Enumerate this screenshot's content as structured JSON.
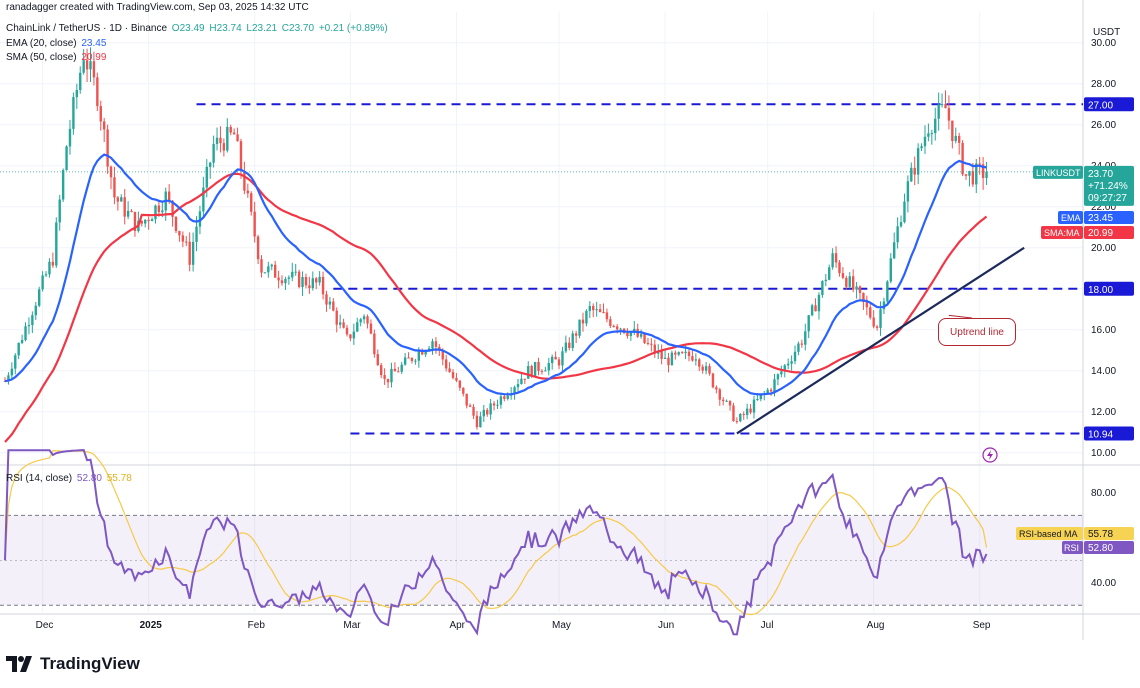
{
  "header": {
    "creator": "ranadagger created with TradingView.com, Sep 03, 2025 14:32 UTC",
    "symbol_line": "ChainLink / TetherUS · 1D · Binance",
    "ohlc": {
      "o": "O23.49",
      "h": "H23.74",
      "l": "L23.21",
      "c": "C23.70",
      "chg": "+0.21 (+0.89%)"
    },
    "ema_label": "EMA (20, close)",
    "ema_value": "23.45",
    "sma_label": "SMA (50, close)",
    "sma_value": "20.99",
    "rsi_label": "RSI (14, close)",
    "rsi_value": "52.80",
    "rsi_ma_value": "55.78"
  },
  "axis_currency": "USDT",
  "annotation": "Uptrend line",
  "badges": {
    "level_27": "27.00",
    "level_18": "18.00",
    "level_1094": "10.94",
    "symbol": "LINKUSDT",
    "price": "23.70",
    "change": "+71.24%",
    "countdown": "09:27:27",
    "ema": "EMA",
    "ema_val": "23.45",
    "sma": "SMA:MA",
    "sma_val": "20.99",
    "rsi_ma": "RSI-based MA",
    "rsi_ma_val": "55.78",
    "rsi": "RSI",
    "rsi_val": "52.80"
  },
  "brand": "TradingView",
  "colors": {
    "up": "#26a69a",
    "down": "#ef5350",
    "ema": "#2962ff",
    "sma": "#f23645",
    "level": "#1a1ad6",
    "trend": "#1b2a5a",
    "rsi": "#7e57c2",
    "rsi_ma": "#f7c948",
    "grid": "#f0f3fa"
  },
  "chart_data": [
    {
      "type": "candlestick",
      "title": "ChainLink / TetherUS · 1D · Binance",
      "ylabel": "USDT",
      "ylim": [
        9.5,
        31.5
      ],
      "y_ticks": [
        10,
        12,
        14,
        16,
        18,
        20,
        22,
        24,
        26,
        28,
        30
      ],
      "x_ticks": [
        "Dec",
        "2025",
        "Feb",
        "Mar",
        "Apr",
        "May",
        "Jun",
        "Jul",
        "Aug",
        "Sep"
      ],
      "last_close": 23.7,
      "horizontal_levels": [
        27.0,
        18.0,
        10.94
      ],
      "indicators": [
        {
          "name": "EMA (20, close)",
          "last": 23.45
        },
        {
          "name": "SMA (50, close)",
          "last": 20.99
        }
      ],
      "anchors": [
        {
          "x": "2024-11-20",
          "y": 13.5
        },
        {
          "x": "2024-11-28",
          "y": 17.0
        },
        {
          "x": "2024-12-04",
          "y": 19.5
        },
        {
          "x": "2024-12-08",
          "y": 25.0
        },
        {
          "x": "2024-12-13",
          "y": 29.5
        },
        {
          "x": "2024-12-17",
          "y": 27.5
        },
        {
          "x": "2024-12-22",
          "y": 22.5
        },
        {
          "x": "2024-12-29",
          "y": 21.0
        },
        {
          "x": "2025-01-06",
          "y": 22.5
        },
        {
          "x": "2025-01-13",
          "y": 19.5
        },
        {
          "x": "2025-01-20",
          "y": 25.0
        },
        {
          "x": "2025-01-26",
          "y": 25.5
        },
        {
          "x": "2025-02-03",
          "y": 19.0
        },
        {
          "x": "2025-02-12",
          "y": 18.5
        },
        {
          "x": "2025-02-20",
          "y": 18.2
        },
        {
          "x": "2025-02-28",
          "y": 15.5
        },
        {
          "x": "2025-03-05",
          "y": 16.8
        },
        {
          "x": "2025-03-11",
          "y": 13.5
        },
        {
          "x": "2025-03-25",
          "y": 15.5
        },
        {
          "x": "2025-04-07",
          "y": 11.5
        },
        {
          "x": "2025-04-14",
          "y": 12.7
        },
        {
          "x": "2025-04-22",
          "y": 14.0
        },
        {
          "x": "2025-05-01",
          "y": 14.5
        },
        {
          "x": "2025-05-10",
          "y": 17.0
        },
        {
          "x": "2025-05-23",
          "y": 15.8
        },
        {
          "x": "2025-06-01",
          "y": 14.5
        },
        {
          "x": "2025-06-10",
          "y": 14.8
        },
        {
          "x": "2025-06-22",
          "y": 11.5
        },
        {
          "x": "2025-07-02",
          "y": 13.2
        },
        {
          "x": "2025-07-11",
          "y": 15.5
        },
        {
          "x": "2025-07-20",
          "y": 19.5
        },
        {
          "x": "2025-08-02",
          "y": 16.2
        },
        {
          "x": "2025-08-10",
          "y": 22.5
        },
        {
          "x": "2025-08-17",
          "y": 26.0
        },
        {
          "x": "2025-08-22",
          "y": 26.8
        },
        {
          "x": "2025-08-28",
          "y": 23.5
        },
        {
          "x": "2025-09-03",
          "y": 23.7
        }
      ],
      "trendline": [
        {
          "x": "2025-06-22",
          "y": 10.94
        },
        {
          "x": "2025-09-14",
          "y": 20.0
        }
      ]
    },
    {
      "type": "line",
      "title": "RSI (14, close)",
      "ylim": [
        27,
        92
      ],
      "y_ticks": [
        40,
        80
      ],
      "bands": [
        30,
        70
      ],
      "series": [
        {
          "name": "RSI",
          "last": 52.8
        },
        {
          "name": "RSI-based MA",
          "last": 55.78
        }
      ]
    }
  ]
}
